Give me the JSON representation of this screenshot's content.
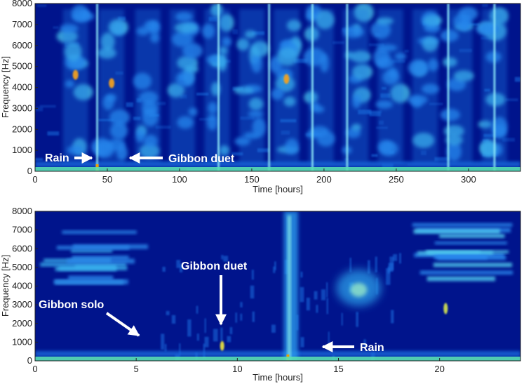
{
  "chart_data": [
    {
      "type": "heatmap",
      "title": "",
      "xlabel": "Time [hours]",
      "ylabel": "Frequency [Hz]",
      "xlim": [
        0,
        336
      ],
      "ylim": [
        0,
        8000
      ],
      "xticks": [
        "0",
        "50",
        "100",
        "150",
        "200",
        "250",
        "300"
      ],
      "xtick_values": [
        0,
        50,
        100,
        150,
        200,
        250,
        300
      ],
      "yticks": [
        "0",
        "1000",
        "2000",
        "3000",
        "4000",
        "5000",
        "6000",
        "7000",
        "8000"
      ],
      "ytick_values": [
        0,
        1000,
        2000,
        3000,
        4000,
        5000,
        6000,
        7000,
        8000
      ],
      "colormap": "jet",
      "background_color": "#00148c",
      "dawn_chorus_hours": [
        28,
        53,
        78,
        102,
        126,
        150,
        174,
        198,
        222,
        246,
        270,
        294,
        318
      ],
      "rain_lines_hours": [
        43,
        127,
        162,
        192,
        216,
        286,
        318
      ],
      "annotations": [
        {
          "text": "Rain",
          "x": 43,
          "y": 600,
          "arrow": "right"
        },
        {
          "text": "Gibbon duet",
          "x": 60,
          "y": 600,
          "arrow": "left"
        }
      ]
    },
    {
      "type": "heatmap",
      "title": "",
      "xlabel": "Time [hours]",
      "ylabel": "Frequency [Hz]",
      "xlim": [
        0,
        24
      ],
      "ylim": [
        0,
        8000
      ],
      "xticks": [
        "0",
        "5",
        "10",
        "15",
        "20"
      ],
      "xtick_values": [
        0,
        5,
        10,
        15,
        20
      ],
      "yticks": [
        "0",
        "1000",
        "2000",
        "3000",
        "4000",
        "5000",
        "6000",
        "7000",
        "8000"
      ],
      "ytick_values": [
        0,
        1000,
        2000,
        3000,
        4000,
        5000,
        6000,
        7000,
        8000
      ],
      "colormap": "jet",
      "background_color": "#00148c",
      "annotations": [
        {
          "text": "Gibbon solo",
          "x": 5.5,
          "y": 1100,
          "arrow": "down-right"
        },
        {
          "text": "Gibbon duet",
          "x": 9.3,
          "y": 900,
          "arrow": "down"
        },
        {
          "text": "Rain",
          "x": 12.6,
          "y": 700,
          "arrow": "left"
        }
      ]
    }
  ]
}
